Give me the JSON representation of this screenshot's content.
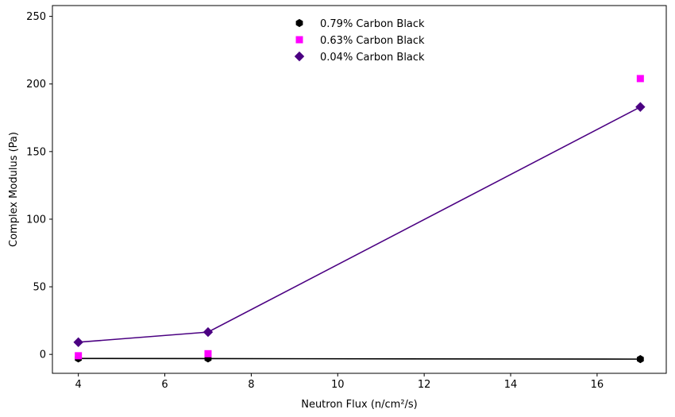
{
  "chart_data": {
    "type": "scatter",
    "xlabel": "Neutron Flux (n/cm²/s)",
    "ylabel": "Complex Modulus (Pa)",
    "xlim": [
      3.4,
      17.6
    ],
    "ylim": [
      -14,
      258
    ],
    "xticks": [
      4,
      6,
      8,
      10,
      12,
      14,
      16
    ],
    "yticks": [
      0,
      50,
      100,
      150,
      200,
      250
    ],
    "grid": false,
    "legend_position": "top-center",
    "series": [
      {
        "name": "0.79% Carbon Black",
        "marker": "hexagon",
        "color": "#000000",
        "x": [
          4,
          7,
          17
        ],
        "y": [
          -3,
          -3,
          -3.5
        ],
        "fit_line": {
          "color": "#000000",
          "x": [
            4,
            17
          ],
          "y": [
            -3,
            -3.5
          ]
        }
      },
      {
        "name": "0.63% Carbon Black",
        "marker": "square",
        "color": "#ff00ff",
        "x": [
          4,
          7,
          17
        ],
        "y": [
          -1,
          0.5,
          204
        ],
        "fit_line": null
      },
      {
        "name": "0.04% Carbon Black",
        "marker": "diamond",
        "color": "#4b0082",
        "x": [
          4,
          7,
          17
        ],
        "y": [
          9,
          16.5,
          183
        ],
        "fit_line": {
          "color": "#4b0082",
          "x": [
            4,
            7,
            17
          ],
          "y": [
            9,
            16.5,
            183
          ]
        }
      }
    ]
  }
}
